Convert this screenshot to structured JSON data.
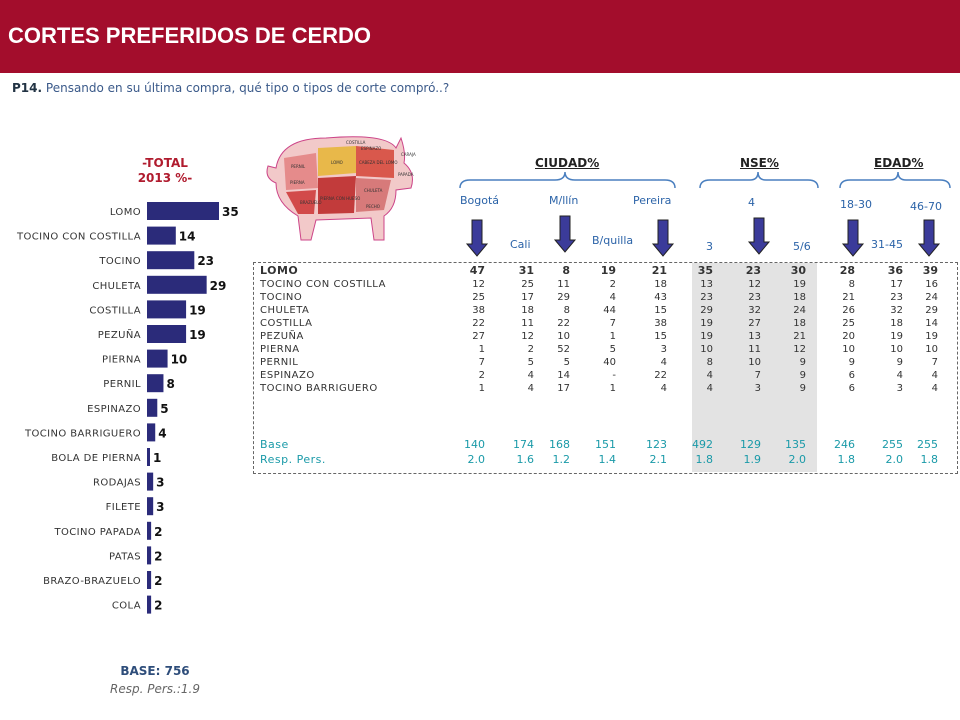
{
  "header": {
    "title": "CORTES PREFERIDOS DE CERDO"
  },
  "question": {
    "number": "P14.",
    "text": "Pensando en su última compra, qué tipo o tipos de corte compró..?"
  },
  "total": {
    "line1": "-TOTAL",
    "line2": "2013 %-"
  },
  "base": {
    "label": "BASE: 756",
    "resp": "Resp. Pers.:1.9"
  },
  "chart_data": {
    "type": "bar",
    "orientation": "horizontal",
    "categories": [
      "LOMO",
      "TOCINO CON COSTILLA",
      "TOCINO",
      "CHULETA",
      "COSTILLA",
      "PEZUÑA",
      "PIERNA",
      "PERNIL",
      "ESPINAZO",
      "TOCINO BARRIGUERO",
      "BOLA DE PIERNA",
      "RODAJAS",
      "FILETE",
      "TOCINO PAPADA",
      "PATAS",
      "BRAZO-BRAZUELO",
      "COLA"
    ],
    "values": [
      35,
      14,
      23,
      29,
      19,
      19,
      10,
      8,
      5,
      4,
      1,
      3,
      3,
      2,
      2,
      2,
      2
    ],
    "xlim": [
      0,
      35
    ],
    "grid": false,
    "bar_color": "#2b2b7a"
  },
  "table": {
    "groups": {
      "ciudad": "CIUDAD%",
      "nse": "NSE%",
      "edad": "EDAD%"
    },
    "columns": {
      "bogota": "Bogotá",
      "cali": "Cali",
      "mllin": "M/llín",
      "bquilla": "B/quilla",
      "pereira": "Pereira",
      "nse3": "3",
      "nse4": "4",
      "nse56": "5/6",
      "e1830": "18-30",
      "e3145": "31-45",
      "e4670": "46-70"
    },
    "rows": [
      {
        "label": "LOMO",
        "values": [
          "47",
          "31",
          "8",
          "19",
          "21",
          "35",
          "23",
          "30",
          "28",
          "36",
          "39"
        ]
      },
      {
        "label": "TOCINO CON COSTILLA",
        "values": [
          "12",
          "25",
          "11",
          "2",
          "18",
          "13",
          "12",
          "19",
          "8",
          "17",
          "16"
        ]
      },
      {
        "label": "TOCINO",
        "values": [
          "25",
          "17",
          "29",
          "4",
          "43",
          "23",
          "23",
          "18",
          "21",
          "23",
          "24"
        ]
      },
      {
        "label": "CHULETA",
        "values": [
          "38",
          "18",
          "8",
          "44",
          "15",
          "29",
          "32",
          "24",
          "26",
          "32",
          "29"
        ]
      },
      {
        "label": "COSTILLA",
        "values": [
          "22",
          "11",
          "22",
          "7",
          "38",
          "19",
          "27",
          "18",
          "25",
          "18",
          "14"
        ]
      },
      {
        "label": "PEZUÑA",
        "values": [
          "27",
          "12",
          "10",
          "1",
          "15",
          "19",
          "13",
          "21",
          "20",
          "19",
          "19"
        ]
      },
      {
        "label": "PIERNA",
        "values": [
          "1",
          "2",
          "52",
          "5",
          "3",
          "10",
          "11",
          "12",
          "10",
          "10",
          "10"
        ]
      },
      {
        "label": "PERNIL",
        "values": [
          "7",
          "5",
          "5",
          "40",
          "4",
          "8",
          "10",
          "9",
          "9",
          "9",
          "7"
        ]
      },
      {
        "label": "ESPINAZO",
        "values": [
          "2",
          "4",
          "14",
          "-",
          "22",
          "4",
          "7",
          "9",
          "6",
          "4",
          "4"
        ]
      },
      {
        "label": "TOCINO BARRIGUERO",
        "values": [
          "1",
          "4",
          "17",
          "1",
          "4",
          "4",
          "3",
          "9",
          "6",
          "3",
          "4"
        ]
      }
    ],
    "base": {
      "label": "Base",
      "values": [
        "140",
        "174",
        "168",
        "151",
        "123",
        "492",
        "129",
        "135",
        "246",
        "255",
        "255"
      ]
    },
    "resp": {
      "label": "Resp. Pers.",
      "values": [
        "2.0",
        "1.6",
        "1.2",
        "1.4",
        "2.1",
        "1.8",
        "1.9",
        "2.0",
        "1.8",
        "2.0",
        "1.8"
      ]
    }
  },
  "pig": {
    "cuts": [
      "COSTILLA",
      "ESPINAZO",
      "CABEZA DEL LOMO",
      "LOMO",
      "PERNIL",
      "PIERNA CON HUESO",
      "CHULETA",
      "PECHO",
      "PAPADA",
      "CARAJA",
      "PIERNA",
      "BRAZUELO"
    ]
  },
  "colors": {
    "header": "#a30d2c",
    "accent_red": "#b01b2e",
    "bar": "#2b2b7a",
    "column_label": "#2b63a8",
    "base_row": "#1a9aa8",
    "arrow": "#3b3b9a"
  }
}
